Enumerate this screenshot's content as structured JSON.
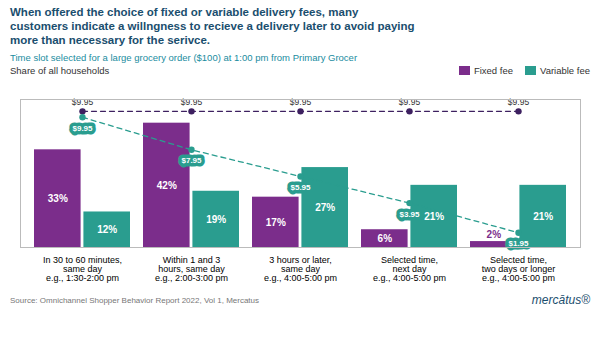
{
  "chart_data": {
    "type": "bar",
    "title": "When offered the choice of fixed or variable delivery fees, many\ncustomers indicate a willngness to recieve a delivery later to avoid paying\nmore than necessary for the serivce.",
    "subtitle": "Time slot selected for a large grocery order ($100) at 1:00 pm from Primary Grocer",
    "ylabel": "Share of all households",
    "source": "Source: Omnichannel Shopper Behavior Report 2022, Vol 1, Mercatus",
    "logo": "mercātus®",
    "categories": [
      "In 30 to 60 minutes,\nsame day",
      "Within 1 and 3\nhours, same day",
      "3 hours or later,\nsame day",
      "Selected time,\nnext day",
      "Selected time,\ntwo days or longer"
    ],
    "sublabels": [
      "e.g., 1:30-2:00 pm",
      "e.g., 2:00-3:00 pm",
      "e.g., 4:00-5:00 pm",
      "e.g., 4:00-5:00 pm",
      "e.g., 4:00-5:00 pm"
    ],
    "series": [
      {
        "name": "Fixed fee",
        "color": "#7B2D8B",
        "values": [
          33,
          42,
          17,
          6,
          2
        ],
        "value_labels": [
          "33%",
          "42%",
          "17%",
          "6%",
          "2%"
        ]
      },
      {
        "name": "Variable fee",
        "color": "#2A9D8F",
        "values": [
          12,
          19,
          27,
          21,
          21
        ],
        "value_labels": [
          "12%",
          "19%",
          "27%",
          "21%",
          "21%"
        ]
      },
      {
        "type": "line",
        "color": "#3D2060",
        "line_style": "dashed",
        "marker": "circle",
        "values": [
          46,
          46,
          46,
          46,
          46
        ],
        "point_labels": [
          "$9.95",
          "$9.95",
          "$9.95",
          "$9.95",
          "$9.95"
        ],
        "label_position": "above"
      },
      {
        "type": "line",
        "color": "#2A9D8F",
        "line_style": "dashed",
        "marker": "circle",
        "values": [
          44,
          33,
          24,
          15,
          5
        ],
        "point_labels": [
          "$9.95",
          "$7.95",
          "$5.95",
          "$3.95",
          "$1.95"
        ],
        "label_position": "below"
      }
    ],
    "ylim": [
      0,
      50
    ],
    "data_labels": true,
    "tick_labels": "x",
    "grid": false,
    "legend": "upper right"
  }
}
